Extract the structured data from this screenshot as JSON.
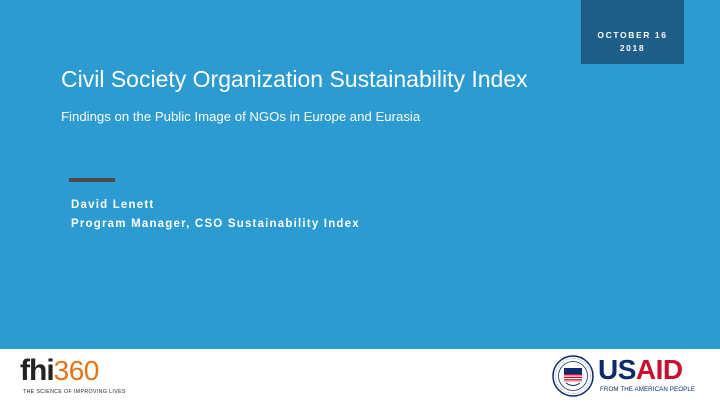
{
  "date": {
    "line1": "OCTOBER 16",
    "line2": "2018"
  },
  "title": "Civil Society Organization Sustainability Index",
  "subtitle": "Findings on the Public Image of NGOs in Europe and Eurasia",
  "presenter": {
    "name": "David Lenett",
    "role": "Program Manager, CSO Sustainability Index"
  },
  "footer": {
    "fhi": {
      "wordmark_letters": "fhi",
      "wordmark_number": "360",
      "tagline": "THE SCIENCE OF IMPROVING LIVES"
    },
    "usaid": {
      "word_us": "US",
      "word_aid": "AID",
      "tagline": "FROM THE AMERICAN PEOPLE"
    }
  },
  "colors": {
    "background": "#2b9bd2",
    "date_box": "#1e5e87",
    "accent_bar": "#4b4b4b",
    "fhi_orange": "#e8731a",
    "usaid_blue": "#0b2a6b",
    "usaid_red": "#c8102e"
  }
}
